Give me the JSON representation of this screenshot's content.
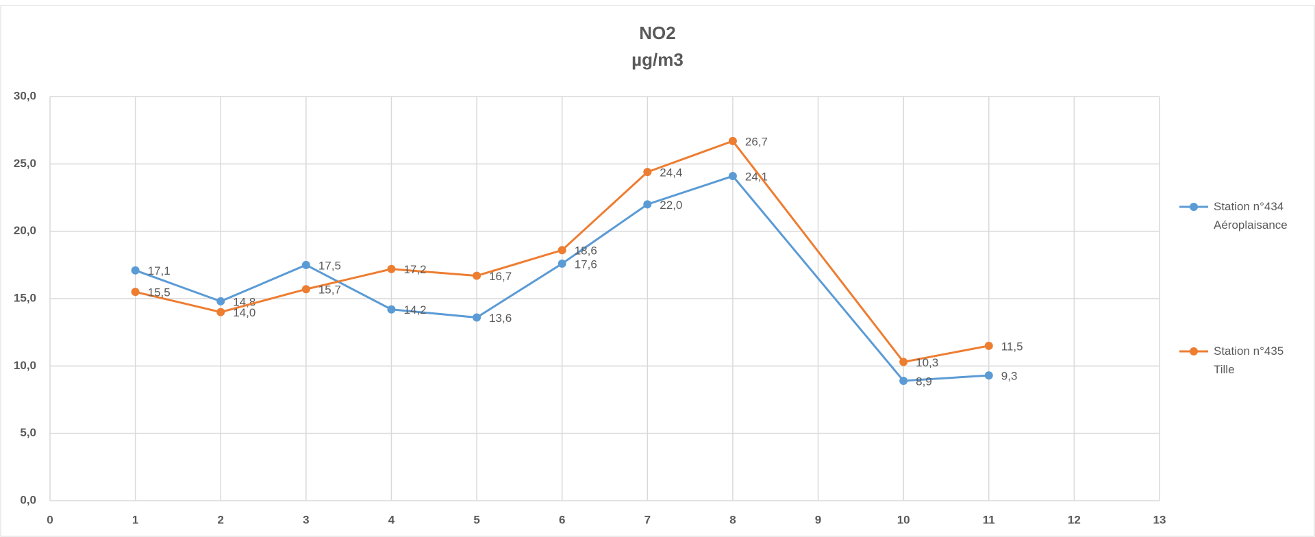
{
  "chart_data": {
    "type": "line",
    "title": "NO2",
    "subtitle": "µg/m3",
    "xlim": [
      0,
      13
    ],
    "xticks": [
      0,
      1,
      2,
      3,
      4,
      5,
      6,
      7,
      8,
      9,
      10,
      11,
      12,
      13
    ],
    "ylim": [
      0,
      30
    ],
    "yticks": [
      {
        "value": 0,
        "label": "0,0"
      },
      {
        "value": 5,
        "label": "5,0"
      },
      {
        "value": 10,
        "label": "10,0"
      },
      {
        "value": 15,
        "label": "15,0"
      },
      {
        "value": 20,
        "label": "20,0"
      },
      {
        "value": 25,
        "label": "25,0"
      },
      {
        "value": 30,
        "label": "30,0"
      }
    ],
    "grid": true,
    "legend": "right",
    "x": [
      1,
      2,
      3,
      4,
      5,
      6,
      7,
      8,
      10,
      11
    ],
    "series": [
      {
        "name": "Station n°434 Aéroplaisance",
        "color": "#5b9bd5",
        "values": [
          17.1,
          14.8,
          17.5,
          14.2,
          13.6,
          17.6,
          22.0,
          24.1,
          8.9,
          9.3
        ],
        "value_labels": [
          "17,1",
          "14,8",
          "17,5",
          "14,2",
          "13,6",
          "17,6",
          "22,0",
          "24,1",
          "8,9",
          "9,3"
        ]
      },
      {
        "name": "Station n°435 Tille",
        "color": "#ed7d31",
        "values": [
          15.5,
          14.0,
          15.7,
          17.2,
          16.7,
          18.6,
          24.4,
          26.7,
          10.3,
          11.5
        ],
        "value_labels": [
          "15,5",
          "14,0",
          "15,7",
          "17,2",
          "16,7",
          "18,6",
          "24,4",
          "26,7",
          "10,3",
          "11,5"
        ]
      }
    ]
  }
}
